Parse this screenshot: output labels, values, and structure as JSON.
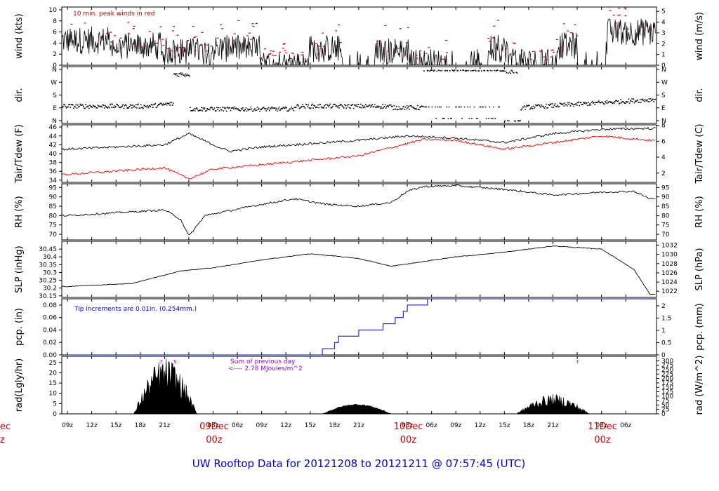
{
  "title": "UW Rooftop Data for 20121208  to  20121211 @ 07:57:45  (UTC)",
  "colors": {
    "title": "#0000cc",
    "day_label": "#cc0000",
    "dew": "#ee0000",
    "precip": "#0000cc",
    "rad_note": "#9900cc",
    "peak": "#cc0000",
    "trace": "#000000"
  },
  "time_axis": {
    "hour_ticks": [
      "09z",
      "12z",
      "15z",
      "18z",
      "21z",
      "00z",
      "03z",
      "06z",
      "09z",
      "12z",
      "15z",
      "18z",
      "21z",
      "00z",
      "03z",
      "06z",
      "09z",
      "12z",
      "15z",
      "18z",
      "21z",
      "00z",
      "03z",
      "06z"
    ],
    "day_labels": [
      {
        "day": "09Dec",
        "hour": "00z"
      },
      {
        "day": "10Dec",
        "hour": "00z"
      },
      {
        "day": "11Dec",
        "hour": "00z"
      }
    ],
    "left_edge_fragment": {
      "day": "ec",
      "hour": "z"
    }
  },
  "chart_data": [
    {
      "type": "line",
      "id": "wind",
      "ylabel": "wind (kts)",
      "ylabel_right": "wind (m/s)",
      "ylim": [
        0,
        10.5
      ],
      "yticks": [
        0,
        2,
        4,
        6,
        8,
        10
      ],
      "yticks_right": [
        0,
        1,
        2,
        3,
        4,
        5
      ],
      "note": "10 min. peak winds in red",
      "series": [
        {
          "name": "wind",
          "approx_levels": [
            4.5,
            3.5,
            2.5,
            3,
            0,
            3,
            2.5,
            0.5,
            3,
            0.5,
            3.5,
            6
          ]
        }
      ]
    },
    {
      "type": "scatter",
      "id": "dir",
      "ylabel": "dir.",
      "ylabel_right": "dir.",
      "yticks": [
        "N",
        "W",
        "S",
        "E",
        "N"
      ],
      "yticks_right": [
        "N",
        "W",
        "S",
        "E",
        "N"
      ]
    },
    {
      "type": "line",
      "id": "temp",
      "ylabel": "Tair/Tdew (F)",
      "ylabel_right": "Tair/Tdew (C)",
      "ylim": [
        33.5,
        46.5
      ],
      "yticks": [
        34,
        36,
        38,
        40,
        42,
        44,
        46
      ],
      "yticks_right": [
        2,
        4,
        6,
        8
      ],
      "series": [
        {
          "name": "Tair",
          "points": [
            [
              0,
              41
            ],
            [
              12,
              42
            ],
            [
              15,
              44.5
            ],
            [
              18,
              42
            ],
            [
              20,
              40.5
            ],
            [
              24,
              41.5
            ],
            [
              36,
              43
            ],
            [
              42,
              44
            ],
            [
              48,
              43.5
            ],
            [
              54,
              42.5
            ],
            [
              60,
              44.5
            ],
            [
              66,
              45.5
            ],
            [
              72,
              45.7
            ]
          ]
        },
        {
          "name": "Tdew",
          "points": [
            [
              0,
              35.3
            ],
            [
              12,
              36.8
            ],
            [
              15,
              34.3
            ],
            [
              18,
              36.5
            ],
            [
              24,
              37.5
            ],
            [
              36,
              39.5
            ],
            [
              44,
              43.2
            ],
            [
              48,
              43
            ],
            [
              54,
              41
            ],
            [
              60,
              42.5
            ],
            [
              66,
              44
            ],
            [
              72,
              43
            ]
          ]
        }
      ]
    },
    {
      "type": "line",
      "id": "rh",
      "ylabel": "RH (%)",
      "ylabel_right": "RH (%)",
      "ylim": [
        67,
        97
      ],
      "yticks": [
        70,
        75,
        80,
        85,
        90,
        95
      ],
      "yticks_right": [
        70,
        75,
        80,
        85,
        90,
        95
      ],
      "series": [
        {
          "name": "RH",
          "points": [
            [
              0,
              80
            ],
            [
              12,
              83
            ],
            [
              14,
              78
            ],
            [
              15,
              69
            ],
            [
              17,
              80
            ],
            [
              24,
              86
            ],
            [
              28,
              89
            ],
            [
              32,
              86
            ],
            [
              36,
              85
            ],
            [
              40,
              87
            ],
            [
              42,
              93
            ],
            [
              44,
              95.5
            ],
            [
              48,
              96
            ],
            [
              54,
              94
            ],
            [
              60,
              91
            ],
            [
              66,
              92.5
            ],
            [
              70,
              93
            ],
            [
              72,
              89
            ]
          ]
        }
      ]
    },
    {
      "type": "line",
      "id": "slp",
      "ylabel": "SLP (inHg)",
      "ylabel_right": "SLP (hPa)",
      "ylim": [
        30.14,
        30.5
      ],
      "yticks": [
        30.15,
        30.2,
        30.25,
        30.3,
        30.35,
        30.4,
        30.45
      ],
      "yticks_right": [
        1022,
        1024,
        1026,
        1028,
        1030,
        1032
      ],
      "series": [
        {
          "name": "SLP",
          "points": [
            [
              0,
              30.21
            ],
            [
              8,
              30.23
            ],
            [
              14,
              30.31
            ],
            [
              18,
              30.33
            ],
            [
              24,
              30.38
            ],
            [
              30,
              30.42
            ],
            [
              36,
              30.39
            ],
            [
              40,
              30.34
            ],
            [
              44,
              30.37
            ],
            [
              48,
              30.4
            ],
            [
              54,
              30.43
            ],
            [
              60,
              30.47
            ],
            [
              66,
              30.45
            ],
            [
              70,
              30.32
            ],
            [
              72,
              30.16
            ]
          ]
        }
      ]
    },
    {
      "type": "line",
      "id": "pcp",
      "ylabel": "pcp. (in)",
      "ylabel_right": "pcp. (mm)",
      "ylim": [
        0,
        0.09
      ],
      "yticks": [
        0,
        0.02,
        0.04,
        0.06,
        0.08
      ],
      "yticks_right": [
        0,
        0.5,
        1,
        1.5,
        2
      ],
      "note": "Tip increments are 0.01in. (0.254mm.)",
      "series": [
        {
          "name": "pcp",
          "points": [
            [
              0,
              0
            ],
            [
              31.5,
              0
            ],
            [
              31.5,
              0.01
            ],
            [
              33,
              0.01
            ],
            [
              33,
              0.02
            ],
            [
              33.5,
              0.02
            ],
            [
              33.5,
              0.03
            ],
            [
              36,
              0.03
            ],
            [
              36,
              0.04
            ],
            [
              39,
              0.04
            ],
            [
              39,
              0.05
            ],
            [
              40.5,
              0.05
            ],
            [
              40.5,
              0.06
            ],
            [
              41.5,
              0.06
            ],
            [
              41.5,
              0.07
            ],
            [
              42,
              0.07
            ],
            [
              42,
              0.08
            ],
            [
              44.5,
              0.08
            ],
            [
              44.5,
              0.09
            ],
            [
              72,
              0.09
            ]
          ]
        }
      ]
    },
    {
      "type": "area",
      "id": "rad",
      "ylabel": "rad(Lgly/hr)",
      "ylabel_right": "rad (W/m^2)",
      "ylim": [
        0,
        28
      ],
      "yticks": [
        0,
        5,
        10,
        15,
        20,
        25
      ],
      "yticks_right": [
        0,
        25,
        50,
        75,
        100,
        125,
        150,
        175,
        200,
        225,
        250,
        275,
        300
      ],
      "note_lines": [
        "Sum of previous day",
        "<---- 2.78 MJoules/m^2"
      ],
      "markers": [
        "r",
        "s",
        "r"
      ]
    }
  ]
}
